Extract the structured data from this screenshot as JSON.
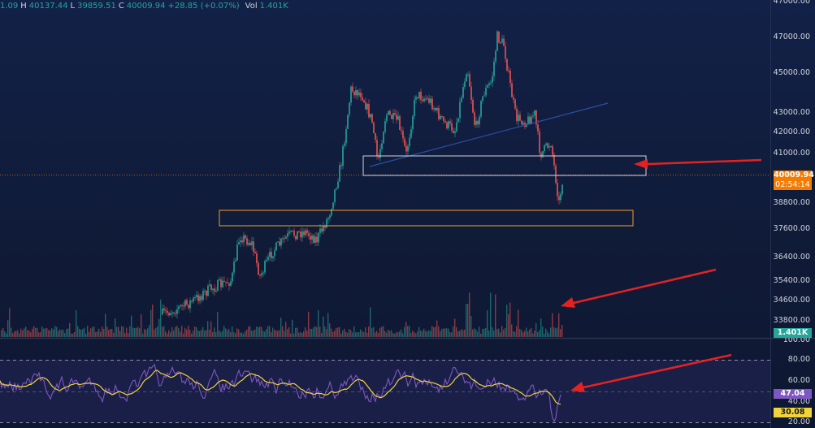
{
  "legend": {
    "open": "1.09",
    "high_label": "H",
    "high": "40137.44",
    "low_label": "L",
    "low": "39859.51",
    "close_label": "C",
    "close": "40009.94",
    "change": "+28.85 (+0.07%)",
    "vol_label": "Vol",
    "vol": "1.401K"
  },
  "price_axis": {
    "ticks": [
      "47000.00",
      "45000.00",
      "43000.00",
      "42000.00",
      "41000.00",
      "38800.00",
      "37600.00",
      "36400.00",
      "35400.00",
      "34600.00",
      "33800.00"
    ],
    "last_price": "40009.94",
    "countdown": "02:54:14",
    "volume_badge": "1.401K"
  },
  "rsi_axis": {
    "ticks": [
      "100.00",
      "80.00",
      "60.00",
      "40.00",
      "20.00"
    ],
    "rsi_value": "47.04",
    "ma_value": "30.08"
  },
  "colors": {
    "up": "#26a69a",
    "down": "#ef5350",
    "last_price_badge": "#f57c00",
    "rsi_line": "#7e57c2",
    "rsi_ma": "#f0d43a",
    "zone_upper": "#cfd3dc",
    "zone_lower": "#f0a12a",
    "arrow": "#e52222",
    "trendline": "#2a4fa8"
  }
}
